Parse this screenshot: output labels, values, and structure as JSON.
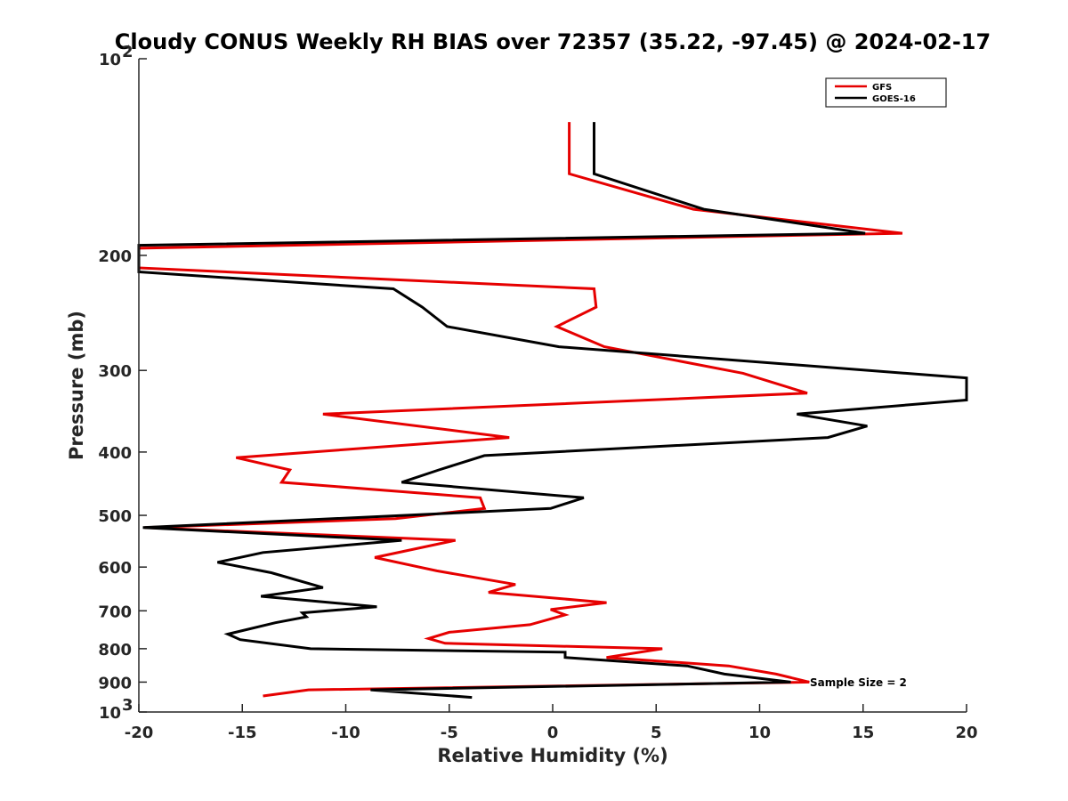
{
  "chart_data": {
    "type": "line",
    "title": "Cloudy CONUS Weekly RH BIAS over 72357 (35.22, -97.45) @ 2024-02-17",
    "xlabel": "Relative Humidity (%)",
    "ylabel": "Pressure (mb)",
    "xlim": [
      -20,
      20
    ],
    "ylim": [
      100,
      1000
    ],
    "y_scale": "log",
    "y_reversed": true,
    "grid": false,
    "legend_position": "top-right",
    "x_ticks": [
      -20,
      -15,
      -10,
      -5,
      0,
      5,
      10,
      15,
      20
    ],
    "x_tick_labels": [
      "-20",
      "-15",
      "-10",
      "-5",
      "0",
      "5",
      "10",
      "15",
      "20"
    ],
    "y_ticks": [
      100,
      200,
      300,
      400,
      500,
      600,
      700,
      800,
      900,
      1000
    ],
    "y_tick_labels": [
      {
        "base": "10",
        "exp": "2"
      },
      {
        "base": "200",
        "exp": ""
      },
      {
        "base": "300",
        "exp": ""
      },
      {
        "base": "400",
        "exp": ""
      },
      {
        "base": "500",
        "exp": ""
      },
      {
        "base": "600",
        "exp": ""
      },
      {
        "base": "700",
        "exp": ""
      },
      {
        "base": "800",
        "exp": ""
      },
      {
        "base": "900",
        "exp": ""
      },
      {
        "base": "10",
        "exp": "3"
      }
    ],
    "annotation": "Sample Size = 2",
    "series": [
      {
        "name": "GFS",
        "color": "#e60000",
        "points": [
          [
            0.8,
            125
          ],
          [
            0.8,
            150
          ],
          [
            6.8,
            170
          ],
          [
            16.9,
            185
          ],
          [
            -20,
            195
          ],
          [
            -20,
            209
          ],
          [
            2.0,
            225
          ],
          [
            2.1,
            240
          ],
          [
            0.2,
            257
          ],
          [
            2.5,
            276
          ],
          [
            9.2,
            303
          ],
          [
            12.3,
            325
          ],
          [
            -11.1,
            350
          ],
          [
            -2.1,
            380
          ],
          [
            -15.3,
            408
          ],
          [
            -12.7,
            426
          ],
          [
            -13.1,
            445
          ],
          [
            -3.5,
            470
          ],
          [
            -3.3,
            488
          ],
          [
            -7.6,
            506
          ],
          [
            -19.7,
            522
          ],
          [
            -4.7,
            546
          ],
          [
            -8.6,
            580
          ],
          [
            -5.6,
            608
          ],
          [
            -1.8,
            638
          ],
          [
            -3.1,
            656
          ],
          [
            2.6,
            680
          ],
          [
            -0.1,
            697
          ],
          [
            0.6,
            710
          ],
          [
            -1.1,
            735
          ],
          [
            -5.0,
            755
          ],
          [
            -6.0,
            772
          ],
          [
            -5.2,
            785
          ],
          [
            5.3,
            800
          ],
          [
            2.6,
            825
          ],
          [
            8.5,
            850
          ],
          [
            10.8,
            875
          ],
          [
            12.4,
            900
          ],
          [
            -11.8,
            925
          ],
          [
            -14.0,
            945
          ]
        ]
      },
      {
        "name": "GOES-16",
        "color": "#000000",
        "points": [
          [
            2.0,
            125
          ],
          [
            2.0,
            150
          ],
          [
            7.3,
            170
          ],
          [
            15.1,
            185
          ],
          [
            -20,
            193
          ],
          [
            -20,
            212
          ],
          [
            -7.7,
            225
          ],
          [
            -6.3,
            240
          ],
          [
            -5.1,
            257
          ],
          [
            0.3,
            276
          ],
          [
            20,
            308
          ],
          [
            20,
            333
          ],
          [
            11.8,
            350
          ],
          [
            15.2,
            365
          ],
          [
            13.3,
            380
          ],
          [
            -3.3,
            405
          ],
          [
            -5.5,
            426
          ],
          [
            -7.3,
            445
          ],
          [
            1.5,
            470
          ],
          [
            -0.1,
            488
          ],
          [
            -19.8,
            522
          ],
          [
            -7.3,
            546
          ],
          [
            -14.0,
            570
          ],
          [
            -16.2,
            590
          ],
          [
            -13.6,
            612
          ],
          [
            -11.1,
            645
          ],
          [
            -14.1,
            665
          ],
          [
            -8.5,
            690
          ],
          [
            -12.1,
            705
          ],
          [
            -11.9,
            715
          ],
          [
            -13.4,
            730
          ],
          [
            -15.7,
            760
          ],
          [
            -15.1,
            775
          ],
          [
            -11.7,
            800
          ],
          [
            0.6,
            810
          ],
          [
            0.6,
            825
          ],
          [
            6.5,
            850
          ],
          [
            8.3,
            875
          ],
          [
            11.5,
            900
          ],
          [
            -8.8,
            925
          ],
          [
            -3.9,
            950
          ]
        ]
      }
    ]
  }
}
